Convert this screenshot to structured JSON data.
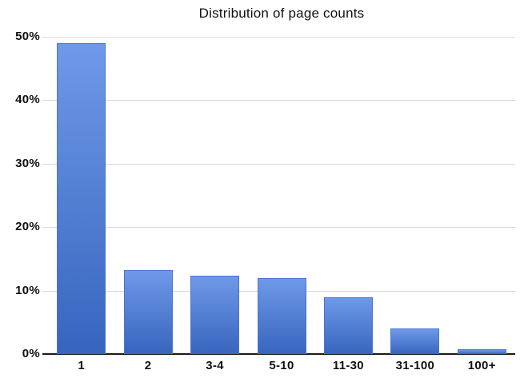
{
  "chart_data": {
    "type": "bar",
    "title": "Distribution of page counts",
    "categories": [
      "1",
      "2",
      "3-4",
      "5-10",
      "11-30",
      "31-100",
      "100+"
    ],
    "values": [
      49,
      13.2,
      12.4,
      12,
      9,
      4,
      0.8
    ],
    "xlabel": "",
    "ylabel": "",
    "ylim": [
      0,
      50
    ],
    "yticks": [
      0,
      10,
      20,
      30,
      40,
      50
    ],
    "ytick_labels": [
      "0%",
      "10%",
      "20%",
      "30%",
      "40%",
      "50%"
    ],
    "grid": true,
    "legend": false,
    "colors": {
      "bar_gradient_top": "#6F99E8",
      "bar_gradient_bottom": "#3765BE",
      "bar_border": "#4A77CC",
      "gridline": "#D9D9D9",
      "axis": "#1A1A1A",
      "text": "#111111",
      "background": "#FFFFFF"
    }
  }
}
